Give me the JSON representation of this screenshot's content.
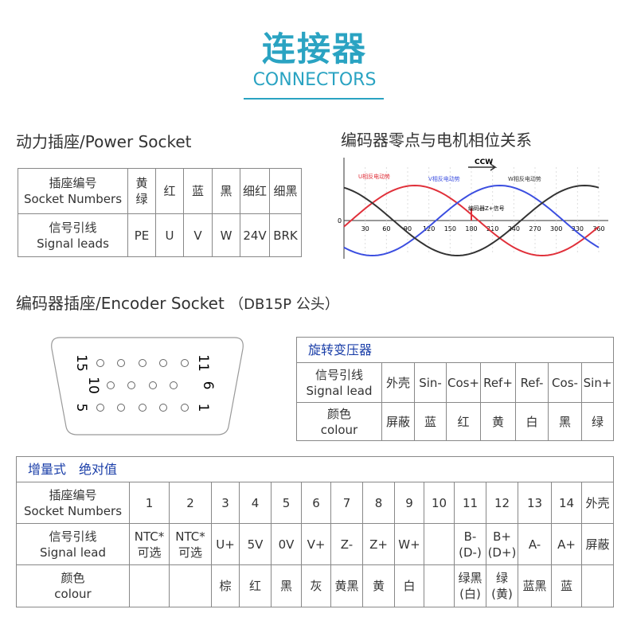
{
  "header": {
    "title": "连接器",
    "subtitle": "CONNECTORS"
  },
  "power": {
    "title": "动力插座/Power Socket",
    "rows": [
      [
        "插座编号\nSocket Numbers",
        "黄\n绿",
        "红",
        "蓝",
        "黑",
        "细红",
        "细黑"
      ],
      [
        "信号引线\nSignal leads",
        "PE",
        "U",
        "V",
        "W",
        "24V",
        "BRK"
      ]
    ]
  },
  "phase": {
    "title": "编码器零点与电机相位关系",
    "direction": "CCW",
    "labels": [
      "U相反电动势",
      "V相反电动势",
      "W相反电动势"
    ],
    "z_signal": "编码器Z+信号",
    "origin": 0,
    "xticks": [
      30,
      60,
      90,
      120,
      150,
      180,
      210,
      240,
      270,
      300,
      330,
      360
    ]
  },
  "encoder": {
    "title": "编码器插座/Encoder Socket",
    "note": "（DB15P 公头）",
    "pins": [
      "15",
      "11",
      "10",
      "6",
      "5",
      "1"
    ]
  },
  "resolver": {
    "caption": "旋转变压器",
    "rows": [
      [
        "信号引线\nSignal lead",
        "外壳",
        "Sin-",
        "Cos+",
        "Ref+",
        "Ref-",
        "Cos-",
        "Sin+"
      ],
      [
        "颜色\ncolour",
        "屏蔽",
        "蓝",
        "红",
        "黄",
        "白",
        "黑",
        "绿"
      ]
    ]
  },
  "incremental": {
    "caption": [
      "增量式",
      "绝对值"
    ],
    "rows": [
      [
        "插座编号\nSocket Numbers",
        1,
        2,
        3,
        4,
        5,
        6,
        7,
        8,
        9,
        10,
        11,
        12,
        13,
        14,
        "外壳"
      ],
      [
        "信号引线\nSignal lead",
        "NTC*\n可选",
        "NTC*\n可选",
        "U+",
        "5V",
        "0V",
        "V+",
        "Z-",
        "Z+",
        "W+",
        null,
        "B-\n(D-)",
        "B+\n(D+)",
        "A-",
        "A+",
        "屏蔽"
      ],
      [
        "颜色\ncolour",
        null,
        null,
        "棕",
        "红",
        "黑",
        "灰",
        "黄黑",
        "黄",
        "白",
        null,
        "绿黑\n(白)",
        "绿\n(黄)",
        "蓝黑",
        "蓝",
        null
      ]
    ]
  }
}
